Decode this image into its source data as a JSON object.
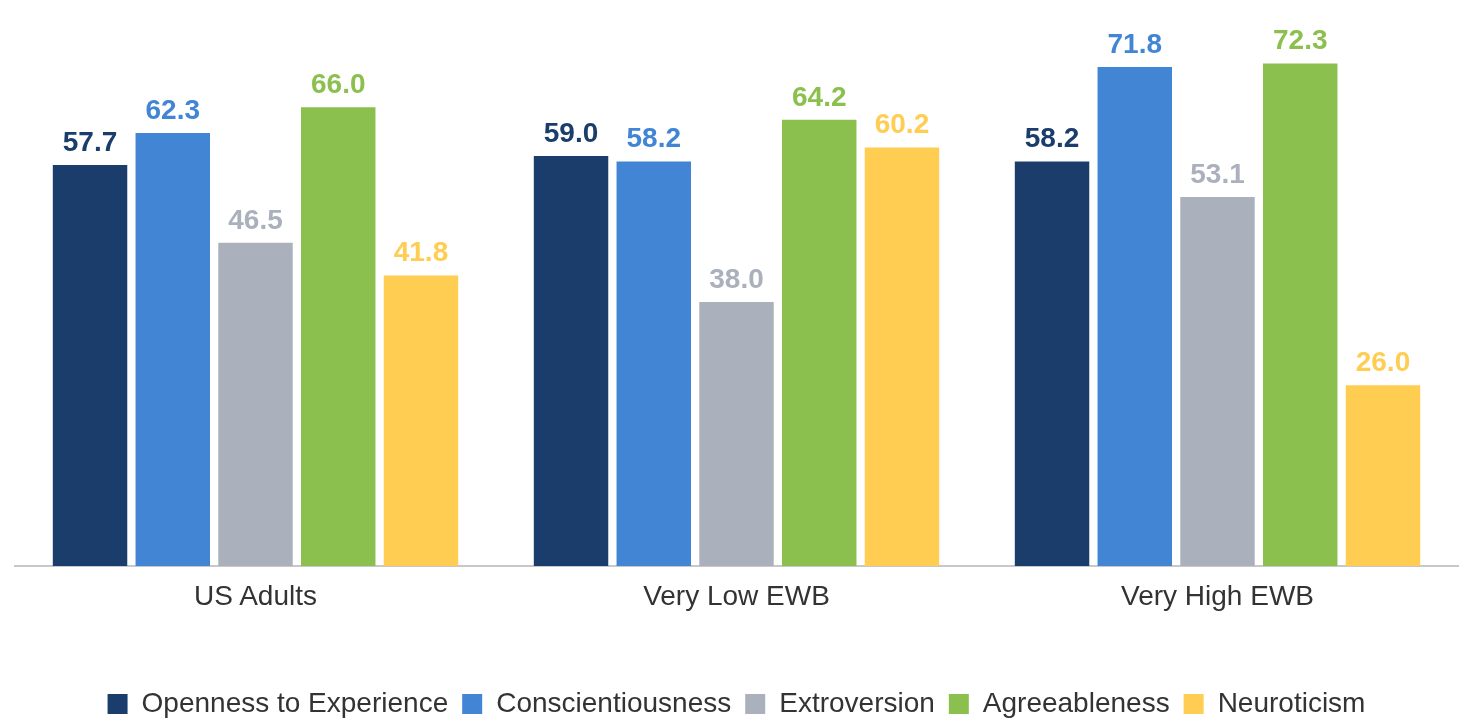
{
  "chart_data": {
    "type": "bar",
    "categories": [
      "US Adults",
      "Very Low EWB",
      "Very High EWB"
    ],
    "series": [
      {
        "name": "Openness to Experience",
        "color": "#1a3d6b",
        "values": [
          57.7,
          59.0,
          58.2
        ],
        "value_labels": [
          "57.7",
          "59.0",
          "58.2"
        ]
      },
      {
        "name": "Conscientiousness",
        "color": "#4285d4",
        "values": [
          62.3,
          58.2,
          71.8
        ],
        "value_labels": [
          "62.3",
          "58.2",
          "71.8"
        ]
      },
      {
        "name": "Extroversion",
        "color": "#aab1bd",
        "values": [
          46.5,
          38.0,
          53.1
        ],
        "value_labels": [
          "46.5",
          "38.0",
          "53.1"
        ]
      },
      {
        "name": "Agreeableness",
        "color": "#8bc04f",
        "values": [
          66.0,
          64.2,
          72.3
        ],
        "value_labels": [
          "66.0",
          "64.2",
          "72.3"
        ]
      },
      {
        "name": "Neuroticism",
        "color": "#fecd52",
        "values": [
          41.8,
          60.2,
          26.0
        ],
        "value_labels": [
          "41.8",
          "60.2",
          "26.0"
        ]
      }
    ],
    "grid": false,
    "legend": "bottom"
  }
}
